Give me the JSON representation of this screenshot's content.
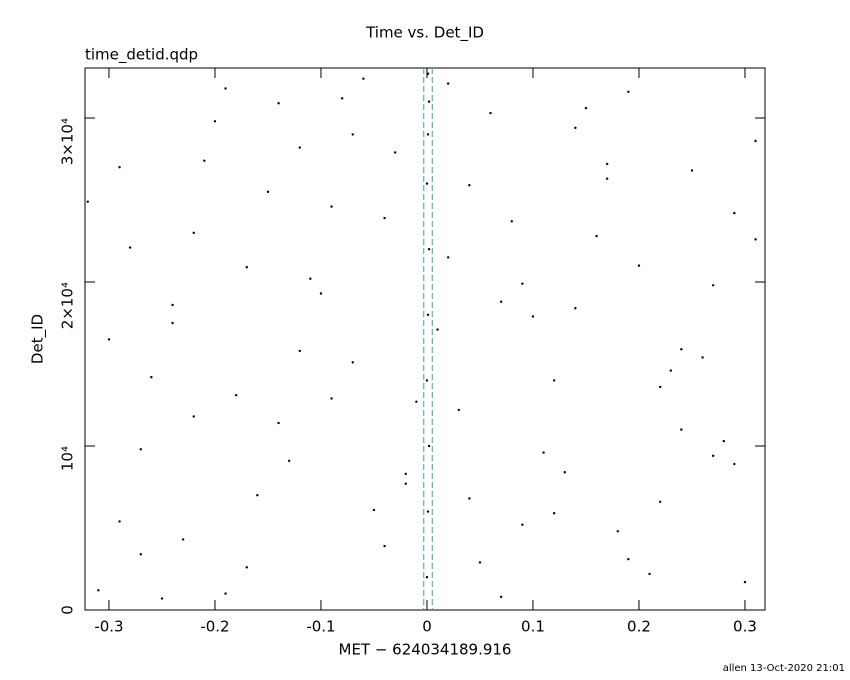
{
  "chart_data": {
    "type": "scatter",
    "title": "Time vs. Det_ID",
    "subtitle": "time_detid.qdp",
    "xlabel": "MET − 624034189.916",
    "ylabel": "Det_ID",
    "footer": "allen 13-Oct-2020 21:01",
    "xlim": [
      -0.3226,
      0.3189
    ],
    "ylim": [
      0,
      33050
    ],
    "xticks": [
      -0.3,
      -0.2,
      -0.1,
      0,
      0.1,
      0.2,
      0.3
    ],
    "yticks": [
      0,
      {
        "value": 10000,
        "label": "10⁴"
      },
      {
        "value": 20000,
        "label": "2×10⁴"
      },
      {
        "value": 30000,
        "label": "3×10⁴"
      }
    ],
    "color": "#000000",
    "vlines": [
      -0.003,
      0.005
    ],
    "vline_color": "#3a9bb0",
    "x": [
      -0.31,
      -0.29,
      -0.27,
      -0.26,
      -0.24,
      -0.22,
      -0.21,
      -0.19,
      -0.17,
      -0.16,
      -0.14,
      -0.12,
      -0.11,
      -0.09,
      -0.07,
      -0.06,
      -0.04,
      -0.02,
      -0.01,
      0.01,
      0.02,
      0.04,
      0.06,
      0.07,
      0.09,
      0.11,
      0.12,
      0.14,
      0.16,
      0.17,
      0.19,
      0.21,
      0.22,
      0.24,
      0.26,
      0.27,
      0.29,
      0.31,
      -0.3,
      -0.28,
      -0.25,
      -0.23,
      -0.2,
      -0.18,
      -0.15,
      -0.13,
      -0.1,
      -0.08,
      -0.05,
      -0.03,
      0.03,
      0.05,
      0.08,
      0.1,
      0.13,
      0.15,
      0.18,
      0.2,
      0.23,
      0.25,
      0.28,
      0.3,
      -0.32,
      -0.27,
      -0.22,
      -0.17,
      -0.12,
      -0.07,
      -0.02,
      0.02,
      0.07,
      0.12,
      0.17,
      0.22,
      0.27,
      0.31,
      -0.29,
      -0.24,
      -0.19,
      -0.14,
      -0.09,
      -0.04,
      0.04,
      0.09,
      0.14,
      0.19,
      0.24,
      0.29,
      0.0,
      0.001,
      0.002,
      0.0,
      0.001,
      0.002,
      0.0,
      0.001,
      0.002,
      0.001
    ],
    "y": [
      1200,
      5400,
      9800,
      14200,
      18600,
      23000,
      27400,
      31800,
      2600,
      7000,
      11400,
      15800,
      20200,
      24600,
      29000,
      32400,
      3900,
      8300,
      12700,
      17100,
      21500,
      25900,
      30300,
      800,
      5200,
      9600,
      14000,
      18400,
      22800,
      27200,
      31600,
      2200,
      6600,
      11000,
      15400,
      19800,
      24200,
      28600,
      16500,
      22100,
      700,
      4300,
      29800,
      13100,
      25500,
      9100,
      19300,
      31200,
      6100,
      27900,
      12200,
      2900,
      23700,
      17900,
      8400,
      30600,
      4800,
      21000,
      14600,
      26800,
      10300,
      1700,
      24900,
      3400,
      11800,
      20900,
      28200,
      15100,
      7700,
      32100,
      18800,
      5900,
      26300,
      13600,
      9400,
      22600,
      27000,
      17500,
      1000,
      30900,
      12900,
      23900,
      6800,
      19900,
      29400,
      3100,
      15900,
      8900,
      2000,
      6000,
      10000,
      14000,
      18000,
      22000,
      26000,
      29000,
      31000,
      32700
    ]
  }
}
